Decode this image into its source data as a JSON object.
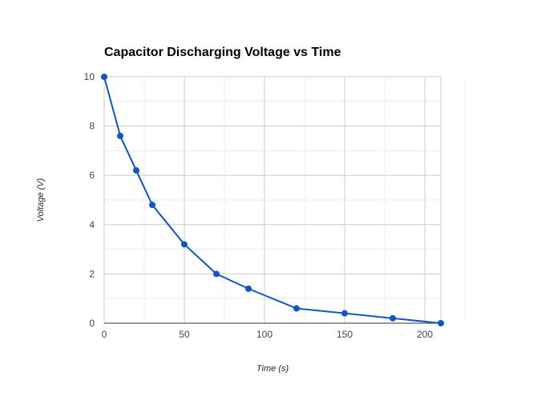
{
  "chart_data": {
    "type": "line",
    "title": "Capacitor Discharging Voltage vs Time",
    "xlabel": "Time (s)",
    "ylabel": "Voltage (V)",
    "xlim": [
      0,
      210
    ],
    "ylim": [
      0,
      10
    ],
    "x_ticks": [
      0,
      50,
      100,
      150,
      200
    ],
    "y_ticks": [
      0,
      2,
      4,
      6,
      8,
      10
    ],
    "grid": true,
    "legend": "none",
    "series": [
      {
        "color": "#1155cc",
        "points": [
          {
            "x": 0,
            "y": 10
          },
          {
            "x": 10,
            "y": 7.6
          },
          {
            "x": 20,
            "y": 6.2
          },
          {
            "x": 30,
            "y": 4.8
          },
          {
            "x": 50,
            "y": 3.2
          },
          {
            "x": 70,
            "y": 2.0
          },
          {
            "x": 90,
            "y": 1.4
          },
          {
            "x": 120,
            "y": 0.6
          },
          {
            "x": 150,
            "y": 0.4
          },
          {
            "x": 180,
            "y": 0.2
          },
          {
            "x": 210,
            "y": 0.0
          }
        ]
      }
    ]
  }
}
